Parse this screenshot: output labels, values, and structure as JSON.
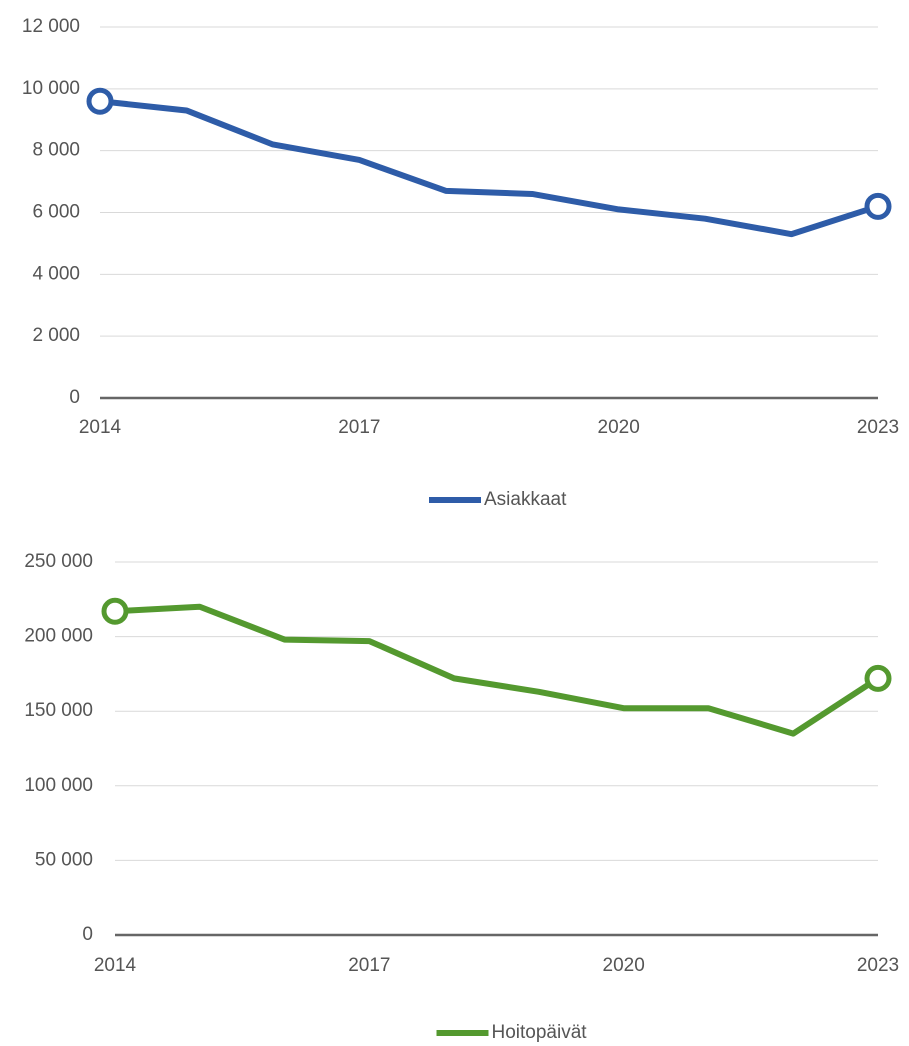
{
  "chart_data": [
    {
      "type": "line",
      "x": [
        2014,
        2015,
        2016,
        2017,
        2018,
        2019,
        2020,
        2021,
        2022,
        2023
      ],
      "xticks": [
        2014,
        2017,
        2020,
        2023
      ],
      "ylim": [
        0,
        12000
      ],
      "yticks": [
        0,
        {
          "value": 2000,
          "label": "2 000"
        },
        {
          "value": 4000,
          "label": "4 000"
        },
        {
          "value": 6000,
          "label": "6 000"
        },
        {
          "value": 8000,
          "label": "8 000"
        },
        {
          "value": 10000,
          "label": "10 000"
        },
        {
          "value": 12000,
          "label": "12 000"
        }
      ],
      "grid": true,
      "series": [
        {
          "name": "Asiakkaat",
          "color": "#2e5ca8",
          "values": [
            9600,
            9300,
            8200,
            7700,
            6700,
            6600,
            6100,
            5800,
            5300,
            6200
          ]
        }
      ]
    },
    {
      "type": "line",
      "x": [
        2014,
        2015,
        2016,
        2017,
        2018,
        2019,
        2020,
        2021,
        2022,
        2023
      ],
      "xticks": [
        2014,
        2017,
        2020,
        2023
      ],
      "ylim": [
        0,
        250000
      ],
      "yticks": [
        0,
        {
          "value": 50000,
          "label": "50 000"
        },
        {
          "value": 100000,
          "label": "100 000"
        },
        {
          "value": 150000,
          "label": "150 000"
        },
        {
          "value": 200000,
          "label": "200 000"
        },
        {
          "value": 250000,
          "label": "250 000"
        }
      ],
      "grid": true,
      "series": [
        {
          "name": "Hoitopäivät",
          "color": "#54992f",
          "values": [
            217000,
            220000,
            198000,
            197000,
            172000,
            163000,
            152000,
            152000,
            135000,
            172000
          ]
        }
      ]
    }
  ]
}
